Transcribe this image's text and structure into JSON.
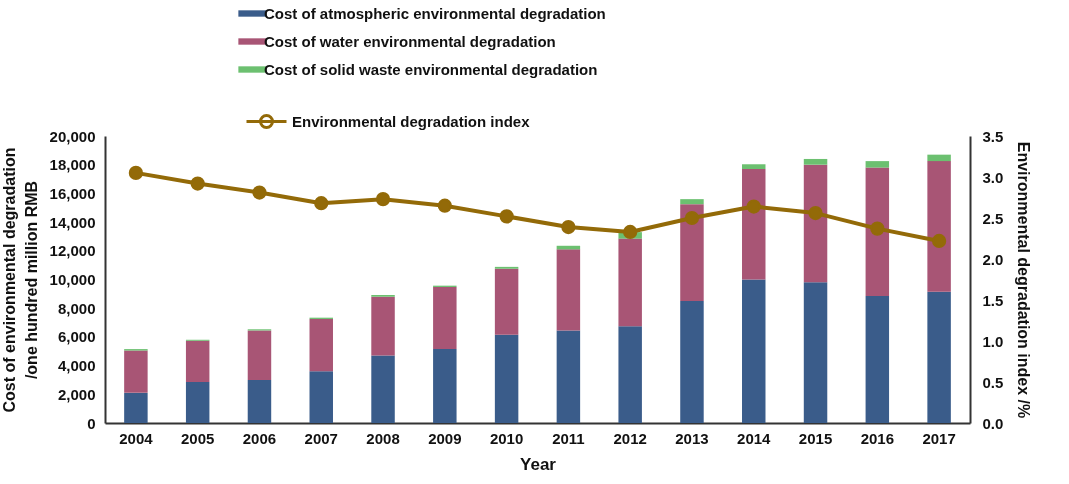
{
  "chart_data": {
    "type": "bar",
    "stacked": true,
    "categories": [
      "2004",
      "2005",
      "2006",
      "2007",
      "2008",
      "2009",
      "2010",
      "2011",
      "2012",
      "2013",
      "2014",
      "2015",
      "2016",
      "2017"
    ],
    "series": [
      {
        "name": "Cost of atmospheric environmental degradation",
        "color": "#3a5c8a",
        "values": [
          2100,
          2850,
          3000,
          3600,
          4700,
          5150,
          6150,
          6450,
          6750,
          8500,
          10000,
          9800,
          8850,
          9150
        ]
      },
      {
        "name": "Cost of water environmental degradation",
        "color": "#a85575",
        "values": [
          2950,
          2880,
          3450,
          3650,
          4100,
          4330,
          4600,
          5650,
          6100,
          6750,
          7700,
          8200,
          8950,
          9100
        ]
      },
      {
        "name": "Cost of solid waste environmental degradation",
        "color": "#6cc070",
        "values": [
          100,
          70,
          80,
          90,
          120,
          90,
          130,
          250,
          450,
          350,
          330,
          400,
          450,
          450
        ]
      },
      {
        "name": "Environmental degradation index",
        "type": "line",
        "axis": "y2",
        "color": "#936a08",
        "marker": "circle",
        "values": [
          3.05,
          2.92,
          2.81,
          2.68,
          2.73,
          2.65,
          2.52,
          2.39,
          2.33,
          2.5,
          2.64,
          2.56,
          2.37,
          2.22
        ]
      }
    ],
    "xlabel": "Year",
    "ylabel": "Cost of environmental degradation\n/one hundred million RMB",
    "y2label": "Environmental degradation index /%",
    "ylim": [
      0,
      20000
    ],
    "yticks": [
      {
        "value": 0,
        "label": "0"
      },
      {
        "value": 2000,
        "label": "2,000"
      },
      {
        "value": 4000,
        "label": "4,000"
      },
      {
        "value": 6000,
        "label": "6,000"
      },
      {
        "value": 8000,
        "label": "8,000"
      },
      {
        "value": 10000,
        "label": "10,000"
      },
      {
        "value": 12000,
        "label": "12,000"
      },
      {
        "value": 14000,
        "label": "14,000"
      },
      {
        "value": 16000,
        "label": "16,000"
      },
      {
        "value": 18000,
        "label": "18,000"
      },
      {
        "value": 20000,
        "label": "20,000"
      }
    ],
    "y2lim": [
      0,
      3.5
    ],
    "y2ticks": [
      {
        "value": 0,
        "label": "0.0"
      },
      {
        "value": 0.5,
        "label": "0.5"
      },
      {
        "value": 1,
        "label": "1.0"
      },
      {
        "value": 1.5,
        "label": "1.5"
      },
      {
        "value": 2,
        "label": "2.0"
      },
      {
        "value": 2.5,
        "label": "2.5"
      },
      {
        "value": 3,
        "label": "3.0"
      },
      {
        "value": 3.5,
        "label": "3.5"
      }
    ],
    "grid": false,
    "legend": "top"
  }
}
